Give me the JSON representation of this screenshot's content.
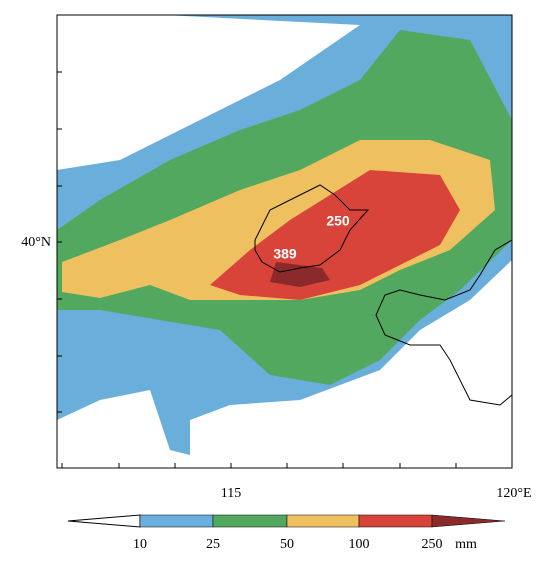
{
  "map": {
    "lat_label": "40°N",
    "lon_labels": [
      "115",
      "120°E"
    ],
    "annotations": [
      "250",
      "389"
    ]
  },
  "colorbar": {
    "labels": [
      "10",
      "25",
      "50",
      "100",
      "250"
    ],
    "unit": "mm"
  }
}
